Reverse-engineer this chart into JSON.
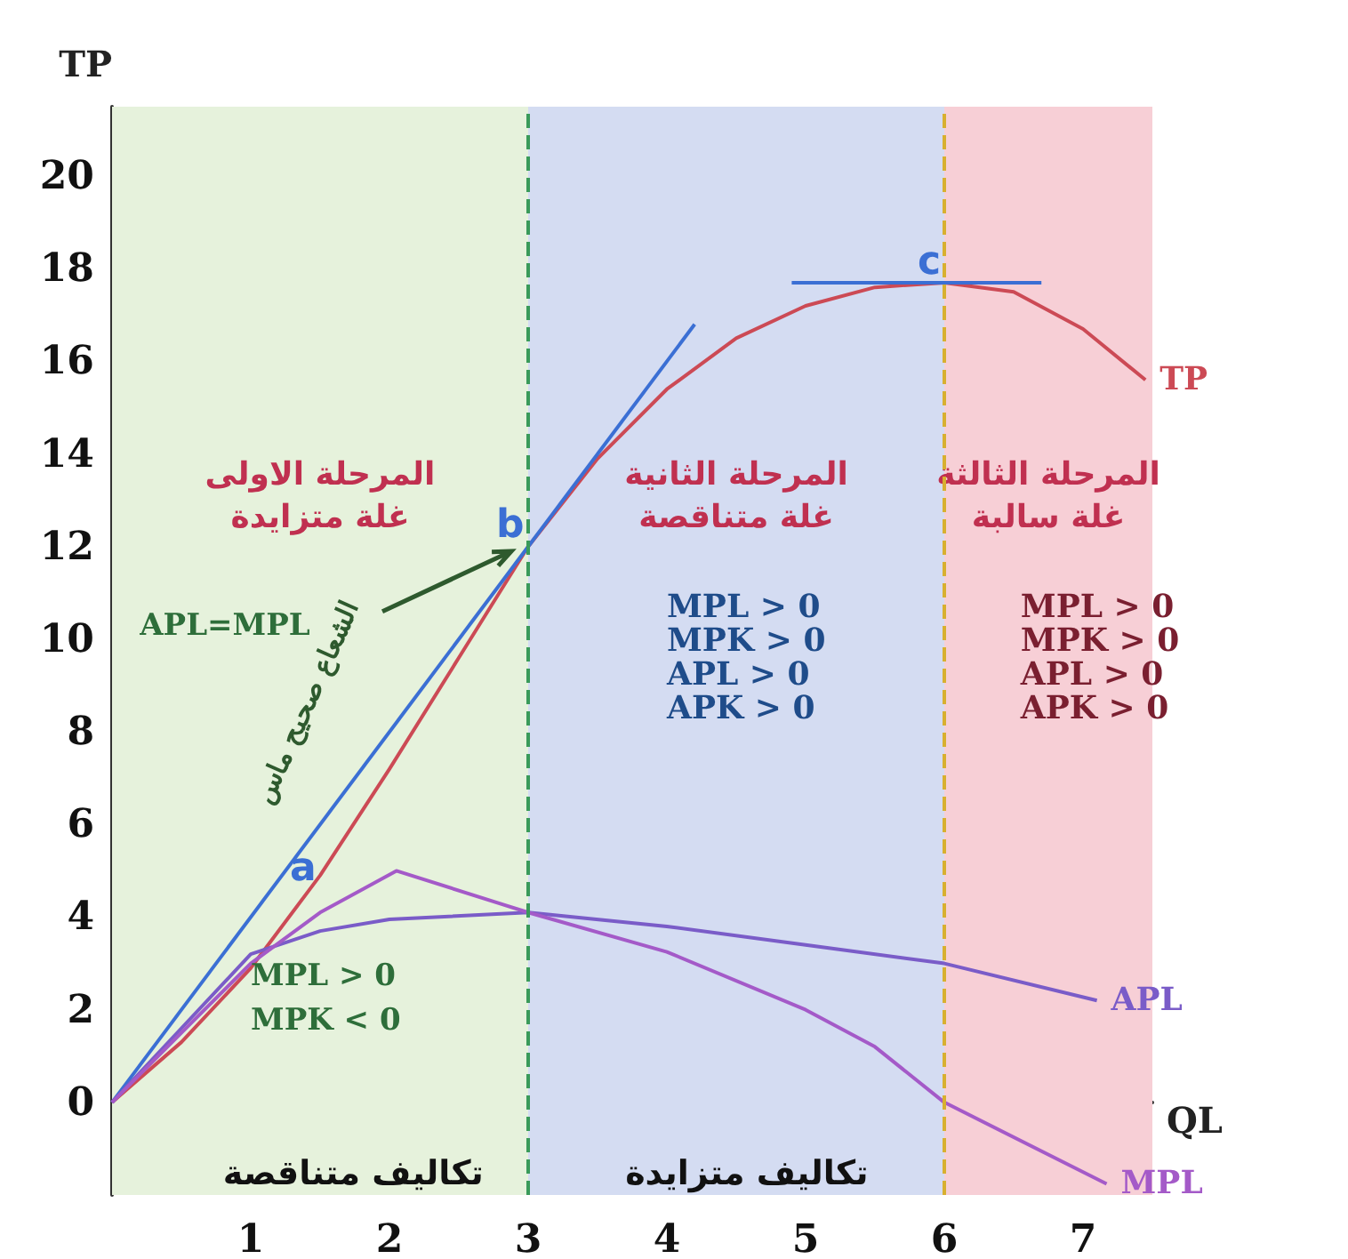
{
  "chart_data": {
    "type": "line",
    "xlabel": "QL",
    "ylabel": "TP",
    "xlim": [
      0,
      7.5
    ],
    "ylim": [
      -2,
      21.5
    ],
    "xticks": [
      1,
      2,
      3,
      4,
      5,
      6,
      7
    ],
    "yticks": [
      0,
      2,
      4,
      6,
      8,
      10,
      12,
      14,
      16,
      18,
      20
    ],
    "marker": "none",
    "line_style": "solid",
    "series": [
      {
        "name": "TP",
        "color": "#cc4a55",
        "x": [
          0,
          0.5,
          1,
          1.5,
          2,
          2.5,
          3,
          3.5,
          4,
          4.5,
          5,
          5.5,
          6,
          6.5,
          7,
          7.45
        ],
        "values": [
          0,
          1.3,
          2.9,
          4.9,
          7.2,
          9.6,
          12,
          13.9,
          15.4,
          16.5,
          17.2,
          17.6,
          17.7,
          17.5,
          16.7,
          15.6
        ]
      },
      {
        "color": "#3b6fd4",
        "x": [
          0,
          4.2
        ],
        "values": [
          0,
          16.8
        ]
      },
      {
        "color": "#3b6fd4",
        "x": [
          4.9,
          6.7
        ],
        "values": [
          17.7,
          17.7
        ]
      },
      {
        "name": "APL",
        "color": "#7a5cc8",
        "x": [
          0,
          0.5,
          1,
          1.5,
          2,
          3,
          4,
          5,
          6,
          7.1
        ],
        "values": [
          0,
          1.6,
          3.2,
          3.7,
          3.95,
          4.1,
          3.8,
          3.4,
          3.0,
          2.2
        ]
      },
      {
        "name": "MPL",
        "color": "#a45ac8",
        "x": [
          0,
          0.5,
          1,
          1.5,
          2.05,
          3,
          4,
          5,
          5.5,
          6,
          7.17
        ],
        "values": [
          0,
          1.5,
          3.0,
          4.1,
          5.0,
          4.1,
          3.25,
          2.0,
          1.2,
          0,
          -1.76
        ]
      }
    ],
    "bands": [
      {
        "axis": "x",
        "from": 0,
        "to": 3,
        "label": "المرحلة الاولى\nغلة متزايدة",
        "color": "#e6f2dc"
      },
      {
        "axis": "x",
        "from": 3,
        "to": 6,
        "label": "المرحلة الثانية\nغلة متناقصة",
        "color": "#d4dcf2"
      },
      {
        "axis": "x",
        "from": 6,
        "to": 7.5,
        "label": "المرحلة الثالثة\nغلة سالبة",
        "color": "#f7cfd6"
      }
    ],
    "ref_lines": [
      {
        "axis": "x",
        "value": 3,
        "color": "#3a9a5a",
        "line_style": "dashed"
      },
      {
        "axis": "x",
        "value": 6,
        "color": "#d8b030",
        "line_style": "dashed"
      }
    ],
    "annotations": [
      {
        "text": "a",
        "x": 1.5,
        "y": 4.6
      },
      {
        "text": "b",
        "x": 3,
        "y": 12
      },
      {
        "text": "c",
        "x": 6,
        "y": 17.7
      },
      "APL=MPL",
      "الشعاع صحيح ماس",
      "MPL > 0\nMPK < 0",
      "MPL > 0\nMPK > 0\nAPL > 0\nAPK > 0",
      "MPL > 0\nMPK > 0\nAPL > 0\nAPK > 0",
      "تكاليف متناقصة",
      "تكاليف متزايدة"
    ]
  }
}
